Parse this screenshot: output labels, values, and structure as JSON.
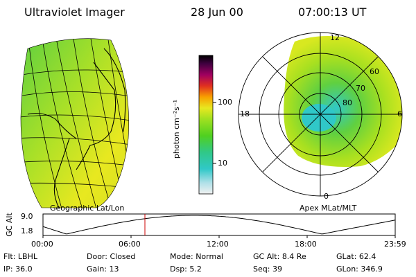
{
  "header": {
    "instrument": "Ultraviolet Imager",
    "date": "28 Jun 00",
    "time": "07:00:13 UT"
  },
  "colorbar": {
    "units_label": "photon cm⁻²s⁻¹",
    "ticks": [
      "100",
      "10"
    ]
  },
  "left_panel": {
    "caption": "Geographic Lat/Lon"
  },
  "right_panel": {
    "caption": "Apex MLat/MLT",
    "mlt_labels": [
      "12",
      "18",
      "6",
      "0"
    ],
    "mlat_labels": [
      "60",
      "70",
      "80"
    ]
  },
  "altitude_plot": {
    "ylabel": "GC Alt",
    "yticks": [
      "9.0",
      "1.8"
    ],
    "xticks": [
      "00:00",
      "06:00",
      "12:00",
      "18:00",
      "23:59"
    ],
    "marker_time": "07:00:13",
    "marker_color": "#cc0000"
  },
  "info": {
    "row1": [
      {
        "label": "Flt:",
        "value": "LBHL"
      },
      {
        "label": "Door:",
        "value": "Closed"
      },
      {
        "label": "Mode:",
        "value": "Normal"
      },
      {
        "label": "GC Alt:",
        "value": "8.4 Re"
      },
      {
        "label": "GLat:",
        "value": "62.4"
      }
    ],
    "row2": [
      {
        "label": "IP:",
        "value": "36.0"
      },
      {
        "label": "Gain:",
        "value": "13"
      },
      {
        "label": "Dsp:",
        "value": "5.2"
      },
      {
        "label": "Seq:",
        "value": "39"
      },
      {
        "label": "GLon:",
        "value": "346.9"
      }
    ]
  },
  "colors": {
    "green": "#66d22a",
    "yellow": "#e8e81a",
    "cyan": "#33cccc"
  }
}
